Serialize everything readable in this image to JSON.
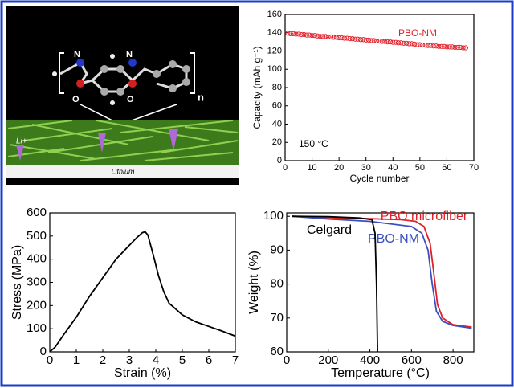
{
  "illustration": {
    "labels": [
      "N",
      "N",
      "O",
      "O",
      "n",
      "Li+",
      "Lithium"
    ]
  },
  "chart_data": [
    {
      "type": "scatter",
      "x_label": "Cycle number",
      "y_label": "Capacity (mAh g⁻¹)",
      "xlim": [
        0,
        70
      ],
      "xticks": [
        0,
        10,
        20,
        30,
        40,
        50,
        60,
        70
      ],
      "ylim": [
        0,
        160
      ],
      "yticks": [
        0,
        20,
        40,
        60,
        80,
        100,
        120,
        140,
        160
      ],
      "annotations": [
        "150 °C"
      ],
      "legend": "upper right",
      "x": [
        1,
        2,
        3,
        4,
        5,
        6,
        7,
        8,
        9,
        10,
        11,
        12,
        13,
        14,
        15,
        16,
        17,
        18,
        19,
        20,
        21,
        22,
        23,
        24,
        25,
        26,
        27,
        28,
        29,
        30,
        31,
        32,
        33,
        34,
        35,
        36,
        37,
        38,
        39,
        40,
        41,
        42,
        43,
        44,
        45,
        46,
        47,
        48,
        49,
        50,
        51,
        52,
        53,
        54,
        55,
        56,
        57,
        58,
        59,
        60,
        61,
        62,
        63,
        64,
        65,
        66,
        67
      ],
      "series": [
        {
          "name": "PBO-NM",
          "color": "#e0202a",
          "values": [
            139.5,
            139,
            139,
            138.5,
            138.5,
            138,
            138,
            137.5,
            137.5,
            137,
            137,
            136.5,
            136,
            136,
            136,
            135.5,
            135.5,
            135,
            135,
            134.5,
            134.5,
            134,
            134,
            133.5,
            133.5,
            133,
            133,
            132.5,
            132.5,
            132,
            132,
            131.5,
            131.5,
            131,
            131,
            130.5,
            130.5,
            130,
            130,
            129.5,
            129.5,
            129,
            129,
            128.5,
            128.5,
            128,
            128,
            127.5,
            127,
            127,
            126.5,
            126.5,
            126,
            126,
            125.5,
            125.5,
            125,
            125,
            125,
            124.5,
            124.5,
            124.5,
            124,
            124,
            124,
            123.5,
            123.5
          ]
        }
      ]
    },
    {
      "type": "line",
      "x_label": "Strain (%)",
      "y_label": "Stress (MPa)",
      "xlim": [
        0,
        7
      ],
      "xticks": [
        0,
        1,
        2,
        3,
        4,
        5,
        6,
        7
      ],
      "ylim": [
        0,
        600
      ],
      "yticks": [
        0,
        100,
        200,
        300,
        400,
        500,
        600
      ],
      "series": [
        {
          "color": "#000000",
          "x": [
            0,
            0.2,
            0.5,
            1,
            1.5,
            2,
            2.5,
            3,
            3.3,
            3.5,
            3.6,
            3.7,
            3.9,
            4.1,
            4.3,
            4.5,
            5,
            5.5,
            6,
            6.5,
            7
          ],
          "values": [
            0,
            20,
            70,
            150,
            240,
            320,
            400,
            460,
            495,
            515,
            518,
            505,
            420,
            330,
            260,
            210,
            160,
            130,
            110,
            90,
            68
          ]
        }
      ]
    },
    {
      "type": "line",
      "x_label": "Temperature (°C)",
      "y_label": "Weight (%)",
      "xlim": [
        0,
        900
      ],
      "xticks": [
        0,
        200,
        400,
        600,
        800
      ],
      "ylim": [
        60,
        101
      ],
      "yticks": [
        60,
        70,
        80,
        90,
        100
      ],
      "series": [
        {
          "name": "PBO microfiber",
          "color": "#e0202a",
          "x": [
            25,
            200,
            400,
            550,
            620,
            660,
            690,
            710,
            725,
            750,
            800,
            890
          ],
          "values": [
            100,
            99.6,
            99.3,
            99,
            98.5,
            97,
            92,
            82,
            74,
            70,
            68,
            67.3
          ]
        },
        {
          "name": "PBO-NM",
          "color": "#3a4fbf",
          "x": [
            25,
            200,
            400,
            600,
            650,
            680,
            700,
            720,
            750,
            800,
            890
          ],
          "values": [
            100,
            99.2,
            98.5,
            97,
            95,
            90,
            80,
            72,
            69,
            67.8,
            67
          ]
        },
        {
          "name": "Celgard",
          "color": "#000000",
          "x": [
            25,
            200,
            350,
            410,
            425,
            432,
            437
          ],
          "values": [
            100,
            99.9,
            99.5,
            99,
            95,
            80,
            60
          ]
        }
      ]
    }
  ]
}
